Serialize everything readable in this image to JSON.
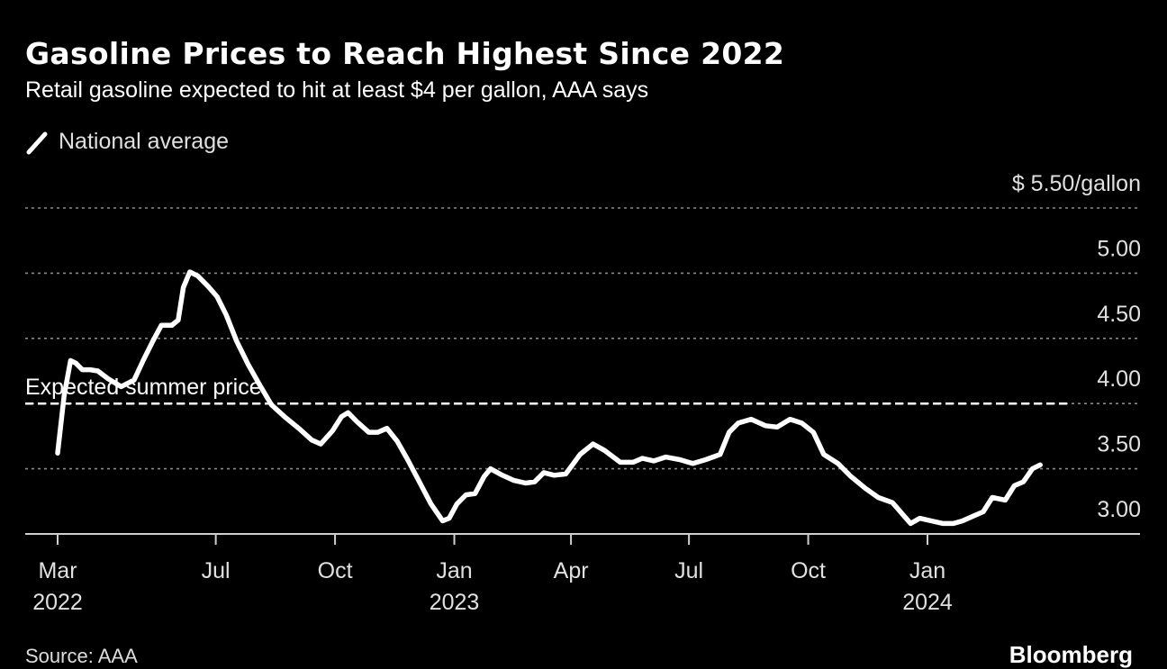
{
  "header": {
    "title": "Gasoline Prices to Reach Highest Since 2022",
    "subtitle": "Retail gasoline expected to hit at least $4 per gallon, AAA says"
  },
  "legend": [
    {
      "label": "National average",
      "color": "#ffffff",
      "icon": "line-swatch-icon"
    }
  ],
  "footer": {
    "source": "Source: AAA",
    "brand": "Bloomberg"
  },
  "chart_data": {
    "type": "line",
    "title": "Gasoline Prices to Reach Highest Since 2022",
    "subtitle": "Retail gasoline expected to hit at least $4 per gallon, AAA says",
    "xlabel": "",
    "ylabel": "$/gallon",
    "ylim": [
      3.0,
      5.5
    ],
    "xlim": [
      "2022-02-05",
      "2024-05-20"
    ],
    "grid": true,
    "legend_position": "top-left",
    "y_ticks": [
      {
        "value": 5.5,
        "label": "$ 5.50/gallon"
      },
      {
        "value": 5.0,
        "label": "5.00"
      },
      {
        "value": 4.5,
        "label": "4.50"
      },
      {
        "value": 4.0,
        "label": "4.00"
      },
      {
        "value": 3.5,
        "label": "3.50"
      },
      {
        "value": 3.0,
        "label": "3.00"
      }
    ],
    "x_ticks": [
      {
        "date": "2022-03-01",
        "label": "Mar",
        "year": "2022"
      },
      {
        "date": "2022-07-01",
        "label": "Jul",
        "year": ""
      },
      {
        "date": "2022-10-01",
        "label": "Oct",
        "year": ""
      },
      {
        "date": "2023-01-01",
        "label": "Jan",
        "year": "2023"
      },
      {
        "date": "2023-04-01",
        "label": "Apr",
        "year": ""
      },
      {
        "date": "2023-07-01",
        "label": "Jul",
        "year": ""
      },
      {
        "date": "2023-10-01",
        "label": "Oct",
        "year": ""
      },
      {
        "date": "2024-01-01",
        "label": "Jan",
        "year": "2024"
      }
    ],
    "reference_lines": [
      {
        "value": 4.0,
        "label": "Expected summer price",
        "style": "dashed",
        "color": "#ffffff"
      }
    ],
    "series": [
      {
        "name": "National average",
        "color": "#ffffff",
        "points": [
          [
            "2022-03-01",
            3.62
          ],
          [
            "2022-03-06",
            4.06
          ],
          [
            "2022-03-11",
            4.33
          ],
          [
            "2022-03-15",
            4.31
          ],
          [
            "2022-03-20",
            4.26
          ],
          [
            "2022-03-26",
            4.26
          ],
          [
            "2022-04-01",
            4.25
          ],
          [
            "2022-04-09",
            4.19
          ],
          [
            "2022-04-19",
            4.13
          ],
          [
            "2022-04-29",
            4.18
          ],
          [
            "2022-05-06",
            4.33
          ],
          [
            "2022-05-13",
            4.47
          ],
          [
            "2022-05-20",
            4.6
          ],
          [
            "2022-05-28",
            4.6
          ],
          [
            "2022-06-02",
            4.64
          ],
          [
            "2022-06-06",
            4.89
          ],
          [
            "2022-06-11",
            5.01
          ],
          [
            "2022-06-17",
            4.98
          ],
          [
            "2022-06-25",
            4.9
          ],
          [
            "2022-07-02",
            4.82
          ],
          [
            "2022-07-09",
            4.68
          ],
          [
            "2022-07-17",
            4.48
          ],
          [
            "2022-07-26",
            4.3
          ],
          [
            "2022-08-04",
            4.14
          ],
          [
            "2022-08-13",
            3.99
          ],
          [
            "2022-08-23",
            3.9
          ],
          [
            "2022-09-03",
            3.81
          ],
          [
            "2022-09-13",
            3.72
          ],
          [
            "2022-09-20",
            3.69
          ],
          [
            "2022-09-29",
            3.79
          ],
          [
            "2022-10-06",
            3.9
          ],
          [
            "2022-10-11",
            3.93
          ],
          [
            "2022-10-18",
            3.86
          ],
          [
            "2022-10-27",
            3.78
          ],
          [
            "2022-11-03",
            3.78
          ],
          [
            "2022-11-10",
            3.81
          ],
          [
            "2022-11-18",
            3.71
          ],
          [
            "2022-11-26",
            3.57
          ],
          [
            "2022-12-05",
            3.4
          ],
          [
            "2022-12-14",
            3.23
          ],
          [
            "2022-12-23",
            3.1
          ],
          [
            "2022-12-28",
            3.12
          ],
          [
            "2023-01-03",
            3.23
          ],
          [
            "2023-01-10",
            3.3
          ],
          [
            "2023-01-17",
            3.31
          ],
          [
            "2023-01-24",
            3.44
          ],
          [
            "2023-01-29",
            3.5
          ],
          [
            "2023-02-07",
            3.45
          ],
          [
            "2023-02-16",
            3.41
          ],
          [
            "2023-02-25",
            3.39
          ],
          [
            "2023-03-04",
            3.4
          ],
          [
            "2023-03-11",
            3.47
          ],
          [
            "2023-03-19",
            3.45
          ],
          [
            "2023-03-28",
            3.46
          ],
          [
            "2023-04-08",
            3.61
          ],
          [
            "2023-04-18",
            3.69
          ],
          [
            "2023-04-27",
            3.64
          ],
          [
            "2023-05-09",
            3.55
          ],
          [
            "2023-05-19",
            3.55
          ],
          [
            "2023-05-26",
            3.58
          ],
          [
            "2023-06-04",
            3.56
          ],
          [
            "2023-06-13",
            3.59
          ],
          [
            "2023-06-24",
            3.57
          ],
          [
            "2023-07-04",
            3.54
          ],
          [
            "2023-07-14",
            3.57
          ],
          [
            "2023-07-25",
            3.61
          ],
          [
            "2023-08-01",
            3.78
          ],
          [
            "2023-08-08",
            3.85
          ],
          [
            "2023-08-18",
            3.88
          ],
          [
            "2023-08-29",
            3.83
          ],
          [
            "2023-09-07",
            3.82
          ],
          [
            "2023-09-17",
            3.88
          ],
          [
            "2023-09-26",
            3.85
          ],
          [
            "2023-10-05",
            3.78
          ],
          [
            "2023-10-13",
            3.61
          ],
          [
            "2023-10-24",
            3.54
          ],
          [
            "2023-11-03",
            3.44
          ],
          [
            "2023-11-14",
            3.35
          ],
          [
            "2023-11-24",
            3.28
          ],
          [
            "2023-12-05",
            3.24
          ],
          [
            "2023-12-12",
            3.16
          ],
          [
            "2023-12-19",
            3.08
          ],
          [
            "2023-12-26",
            3.12
          ],
          [
            "2024-01-04",
            3.1
          ],
          [
            "2024-01-13",
            3.08
          ],
          [
            "2024-01-21",
            3.08
          ],
          [
            "2024-01-28",
            3.1
          ],
          [
            "2024-02-06",
            3.14
          ],
          [
            "2024-02-13",
            3.17
          ],
          [
            "2024-02-20",
            3.28
          ],
          [
            "2024-03-01",
            3.26
          ],
          [
            "2024-03-08",
            3.37
          ],
          [
            "2024-03-15",
            3.4
          ],
          [
            "2024-03-22",
            3.5
          ],
          [
            "2024-03-28",
            3.53
          ]
        ]
      }
    ]
  }
}
